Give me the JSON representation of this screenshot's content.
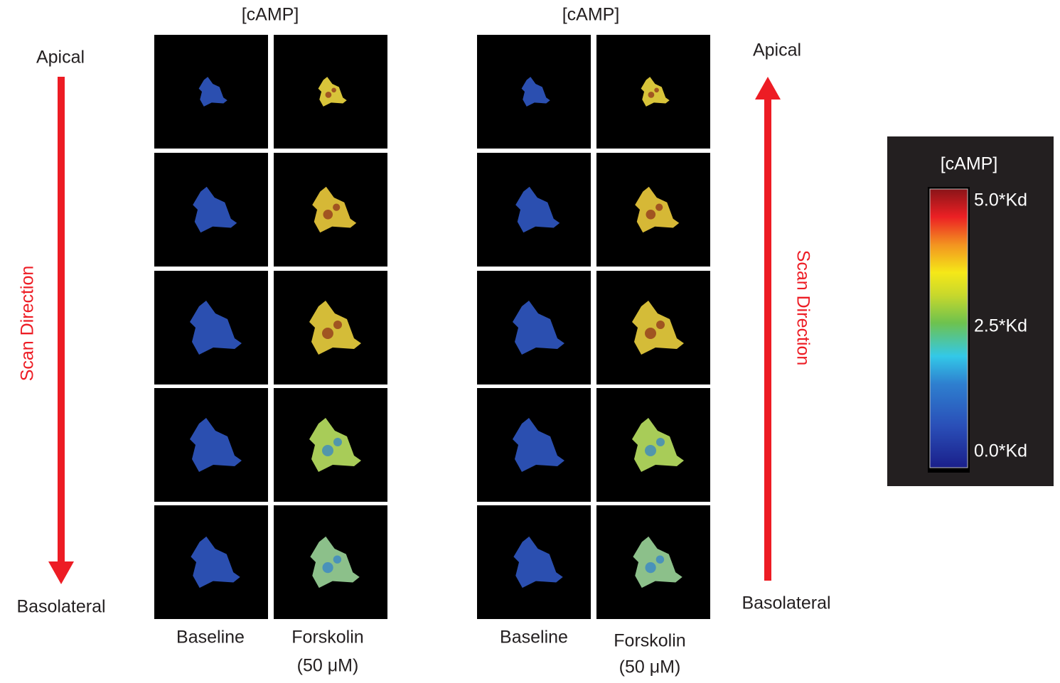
{
  "panels": [
    {
      "title": "[cAMP]",
      "top_label": "Apical",
      "side_label": "Scan Direction",
      "bottom_label": "Basolateral",
      "columns": [
        [
          "Baseline"
        ],
        [
          "Forskolin",
          "(50 μM)"
        ]
      ]
    },
    {
      "title": "[cAMP]",
      "top_label": "Apical",
      "side_label": "Scan Direction",
      "bottom_label": "Basolateral",
      "columns": [
        [
          "Baseline"
        ],
        [
          "Forskolin",
          "(50 μM)"
        ]
      ]
    }
  ],
  "colorbar": {
    "title": "[cAMP]",
    "labels": [
      "5.0*Kd",
      "2.5*Kd",
      "0.0*Kd"
    ]
  }
}
